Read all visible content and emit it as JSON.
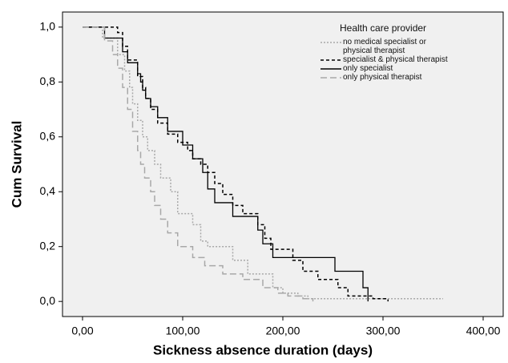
{
  "chart_data": {
    "type": "step",
    "x_label": "Sickness absence duration (days)",
    "y_label": "Cum Survival",
    "legend_title": "Health care provider",
    "xlim": [
      -20,
      420
    ],
    "ylim": [
      -0.055,
      1.055
    ],
    "xticks": [
      {
        "value": 0,
        "label": "0,00"
      },
      {
        "value": 100,
        "label": "100,00"
      },
      {
        "value": 200,
        "label": "200,00"
      },
      {
        "value": 300,
        "label": "300,00"
      },
      {
        "value": 400,
        "label": "400,00"
      }
    ],
    "yticks": [
      {
        "value": 0,
        "label": "0,0"
      },
      {
        "value": 0.2,
        "label": "0,2"
      },
      {
        "value": 0.4,
        "label": "0,4"
      },
      {
        "value": 0.6,
        "label": "0,6"
      },
      {
        "value": 0.8,
        "label": "0,8"
      },
      {
        "value": 1,
        "label": "1,0"
      }
    ],
    "background": "#f0f0f0",
    "series": [
      {
        "name": "no medical specialist or physical therapist",
        "color": "#a8a8a8",
        "line_style": "dotted",
        "x": [
          0,
          20,
          35,
          42,
          47,
          50,
          55,
          60,
          65,
          72,
          78,
          88,
          95,
          110,
          118,
          125,
          150,
          165,
          190,
          200,
          215,
          225,
          360
        ],
        "values": [
          1,
          0.96,
          0.9,
          0.84,
          0.78,
          0.72,
          0.66,
          0.6,
          0.55,
          0.5,
          0.45,
          0.4,
          0.32,
          0.28,
          0.22,
          0.2,
          0.15,
          0.1,
          0.05,
          0.03,
          0.02,
          0.01,
          0.01
        ]
      },
      {
        "name": "specialist & physical therapist",
        "color": "#000000",
        "line_style": "dashed",
        "x": [
          0,
          35,
          40,
          45,
          55,
          60,
          63,
          68,
          75,
          85,
          95,
          105,
          110,
          118,
          125,
          132,
          140,
          150,
          160,
          175,
          182,
          188,
          210,
          220,
          235,
          255,
          265,
          290,
          305
        ],
        "values": [
          1,
          0.98,
          0.93,
          0.88,
          0.82,
          0.78,
          0.74,
          0.7,
          0.65,
          0.61,
          0.58,
          0.55,
          0.52,
          0.5,
          0.47,
          0.43,
          0.39,
          0.35,
          0.32,
          0.28,
          0.23,
          0.19,
          0.15,
          0.11,
          0.08,
          0.05,
          0.02,
          0.01,
          0
        ]
      },
      {
        "name": "only specialist",
        "color": "#000000",
        "line_style": "solid",
        "x": [
          0,
          22,
          40,
          45,
          55,
          58,
          60,
          63,
          68,
          75,
          85,
          100,
          110,
          120,
          125,
          132,
          150,
          175,
          180,
          190,
          252,
          280,
          285
        ],
        "values": [
          1,
          0.96,
          0.91,
          0.87,
          0.83,
          0.8,
          0.77,
          0.74,
          0.71,
          0.67,
          0.62,
          0.57,
          0.52,
          0.47,
          0.41,
          0.36,
          0.31,
          0.26,
          0.21,
          0.16,
          0.11,
          0.05,
          0
        ]
      },
      {
        "name": "only physical therapist",
        "color": "#a8a8a8",
        "line_style": "longdash",
        "x": [
          0,
          22,
          30,
          35,
          40,
          45,
          50,
          55,
          58,
          62,
          68,
          72,
          78,
          85,
          95,
          110,
          122,
          140,
          160,
          180,
          195,
          205,
          220,
          230
        ],
        "values": [
          1,
          0.95,
          0.9,
          0.85,
          0.78,
          0.7,
          0.62,
          0.55,
          0.5,
          0.45,
          0.4,
          0.35,
          0.3,
          0.25,
          0.2,
          0.16,
          0.13,
          0.1,
          0.08,
          0.05,
          0.03,
          0.02,
          0.01,
          0
        ]
      }
    ]
  }
}
